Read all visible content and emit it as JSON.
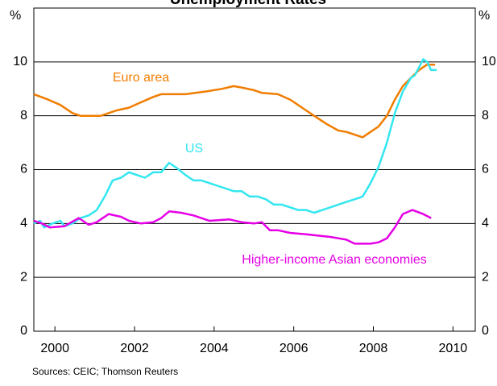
{
  "chart_data": {
    "type": "line",
    "title": "Unemployment Rates",
    "y_unit_left": "%",
    "y_unit_right": "%",
    "source": "Sources: CEIC; Thomson Reuters",
    "xlim": [
      1999.47,
      2010.56
    ],
    "xticks": [
      2000,
      2002,
      2004,
      2006,
      2008,
      2010
    ],
    "ylim": [
      0,
      12
    ],
    "yticks": [
      0,
      2,
      4,
      6,
      8,
      10
    ],
    "grid": true,
    "series": [
      {
        "name": "Euro area",
        "color": "#f07d00",
        "x": [
          1999.47,
          1999.83,
          2000.14,
          2000.44,
          2000.64,
          2001.15,
          2001.35,
          2001.55,
          2001.86,
          2002.16,
          2002.47,
          2002.67,
          2003.28,
          2003.78,
          2004.19,
          2004.49,
          2004.69,
          2005.0,
          2005.2,
          2005.6,
          2005.91,
          2006.21,
          2006.51,
          2006.82,
          2007.12,
          2007.32,
          2007.53,
          2007.73,
          2007.93,
          2008.13,
          2008.34,
          2008.54,
          2008.74,
          2008.94,
          2009.15,
          2009.35,
          2009.55
        ],
        "values": [
          8.8,
          8.6,
          8.4,
          8.1,
          8.0,
          8.0,
          8.1,
          8.2,
          8.3,
          8.5,
          8.7,
          8.8,
          8.8,
          8.9,
          9.0,
          9.1,
          9.05,
          8.95,
          8.85,
          8.8,
          8.6,
          8.3,
          8.0,
          7.7,
          7.45,
          7.4,
          7.3,
          7.2,
          7.4,
          7.6,
          8.0,
          8.6,
          9.1,
          9.4,
          9.7,
          9.9,
          9.9
        ]
      },
      {
        "name": "US",
        "color": "#33e6f0",
        "x": [
          1999.47,
          1999.63,
          1999.73,
          1999.94,
          2000.14,
          2000.24,
          2000.44,
          2000.64,
          2000.85,
          2001.05,
          2001.25,
          2001.45,
          2001.66,
          2001.86,
          2002.06,
          2002.26,
          2002.47,
          2002.67,
          2002.87,
          2003.07,
          2003.28,
          2003.48,
          2003.68,
          2003.88,
          2004.08,
          2004.29,
          2004.49,
          2004.69,
          2004.89,
          2005.1,
          2005.3,
          2005.5,
          2005.7,
          2005.91,
          2006.11,
          2006.31,
          2006.51,
          2006.72,
          2006.92,
          2007.12,
          2007.32,
          2007.53,
          2007.73,
          2007.93,
          2008.13,
          2008.34,
          2008.54,
          2008.74,
          2008.94,
          2009.04,
          2009.15,
          2009.25,
          2009.35,
          2009.45,
          2009.59
        ],
        "values": [
          4.0,
          4.1,
          3.85,
          4.0,
          4.1,
          3.9,
          4.0,
          4.2,
          4.3,
          4.5,
          5.0,
          5.6,
          5.7,
          5.9,
          5.8,
          5.7,
          5.9,
          5.9,
          6.25,
          6.05,
          5.8,
          5.6,
          5.6,
          5.5,
          5.4,
          5.3,
          5.2,
          5.2,
          5.0,
          5.0,
          4.9,
          4.7,
          4.7,
          4.6,
          4.5,
          4.5,
          4.4,
          4.5,
          4.6,
          4.7,
          4.8,
          4.9,
          5.0,
          5.5,
          6.1,
          7.0,
          8.1,
          8.9,
          9.4,
          9.5,
          9.8,
          10.1,
          10.0,
          9.7,
          9.7
        ]
      },
      {
        "name": "Higher-income Asian economies",
        "color": "#e600e6",
        "x": [
          1999.47,
          1999.67,
          1999.87,
          2000.24,
          2000.6,
          2000.85,
          2001.05,
          2001.35,
          2001.66,
          2001.86,
          2002.16,
          2002.47,
          2002.67,
          2002.87,
          2003.17,
          2003.48,
          2003.88,
          2004.39,
          2004.69,
          2005.0,
          2005.2,
          2005.4,
          2005.6,
          2005.91,
          2006.31,
          2006.61,
          2006.92,
          2007.12,
          2007.32,
          2007.53,
          2007.93,
          2008.13,
          2008.34,
          2008.54,
          2008.74,
          2008.98,
          2009.25,
          2009.45
        ],
        "values": [
          4.1,
          4.0,
          3.85,
          3.9,
          4.2,
          3.95,
          4.05,
          4.35,
          4.25,
          4.1,
          4.0,
          4.05,
          4.2,
          4.45,
          4.4,
          4.3,
          4.1,
          4.15,
          4.05,
          4.0,
          4.05,
          3.75,
          3.75,
          3.65,
          3.6,
          3.55,
          3.5,
          3.45,
          3.4,
          3.25,
          3.25,
          3.3,
          3.45,
          3.85,
          4.35,
          4.5,
          4.35,
          4.2
        ]
      }
    ]
  }
}
